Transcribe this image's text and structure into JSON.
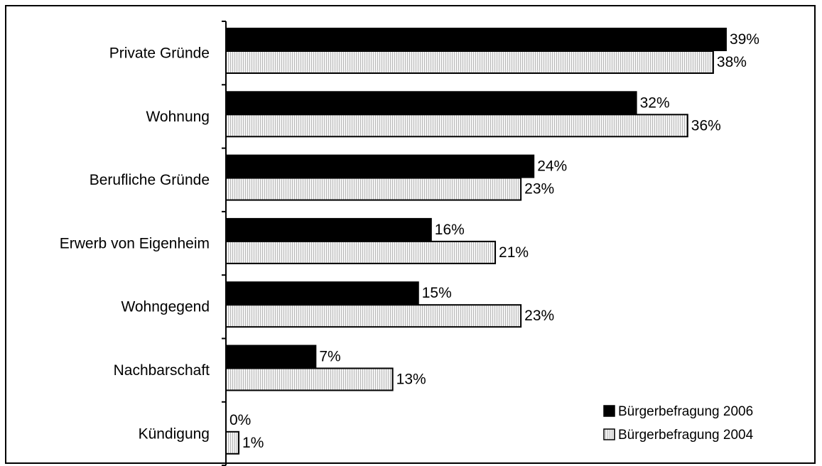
{
  "chart_data": {
    "type": "bar",
    "orientation": "horizontal",
    "categories": [
      "Private Gründe",
      "Wohnung",
      "Berufliche Gründe",
      "Erwerb von Eigenheim",
      "Wohngegend",
      "Nachbarschaft",
      "Kündigung"
    ],
    "series": [
      {
        "name": "Bürgerbefragung 2006",
        "values": [
          39,
          32,
          24,
          16,
          15,
          7,
          0
        ],
        "labels": [
          "39%",
          "32%",
          "24%",
          "16%",
          "15%",
          "7%",
          "0%"
        ],
        "color": "#000000"
      },
      {
        "name": "Bürgerbefragung 2004",
        "values": [
          38,
          36,
          23,
          21,
          23,
          13,
          1
        ],
        "labels": [
          "38%",
          "36%",
          "23%",
          "21%",
          "23%",
          "13%",
          "1%"
        ],
        "color": "#e4e4e4",
        "pattern": "fine-vertical-hatch"
      }
    ],
    "title": "",
    "xlabel": "",
    "ylabel": "",
    "xlim": [
      0,
      40
    ],
    "grid": false,
    "legend_position": "bottom-right"
  }
}
